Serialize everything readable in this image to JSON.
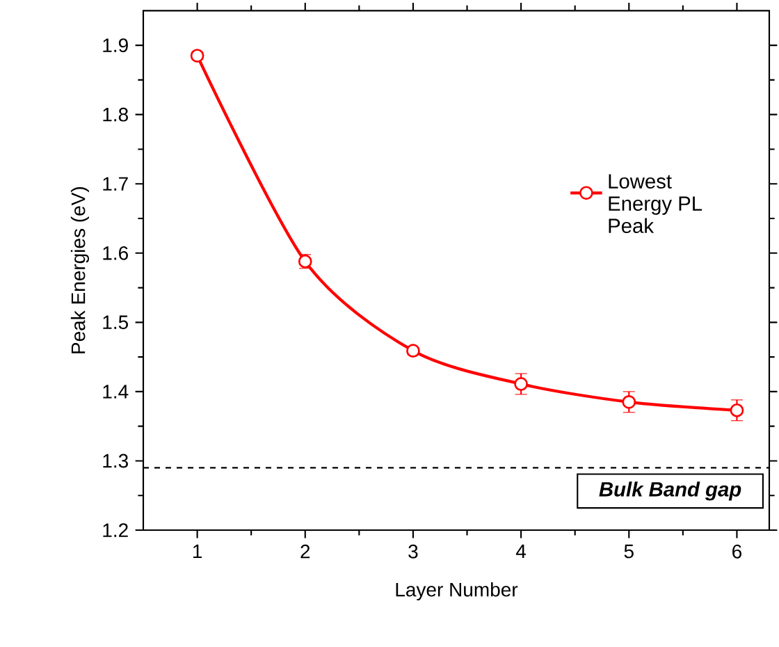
{
  "chart_data": {
    "type": "line",
    "xlabel": "Layer Number",
    "ylabel": "Peak Energies (eV)",
    "x": [
      1,
      2,
      3,
      4,
      5,
      6
    ],
    "series": [
      {
        "name": "Lowest Energy PL Peak",
        "color": "#ff0000",
        "values": [
          1.885,
          1.588,
          1.459,
          1.411,
          1.385,
          1.373
        ],
        "errors": [
          0.005,
          0.01,
          0.005,
          0.015,
          0.015,
          0.015
        ]
      }
    ],
    "xlim": [
      0.5,
      6.3
    ],
    "ylim": [
      1.2,
      1.95
    ],
    "xticks": [
      1,
      2,
      3,
      4,
      5,
      6
    ],
    "yticks": [
      1.2,
      1.3,
      1.4,
      1.5,
      1.6,
      1.7,
      1.8,
      1.9
    ],
    "ref_lines": [
      {
        "axis": "y",
        "value": 1.29,
        "label": "**Bulk Band gap**",
        "color": "#000000",
        "line_style": "dashed"
      }
    ],
    "marker": "circle",
    "line_style": "solid",
    "legend": "right",
    "grid": false
  }
}
